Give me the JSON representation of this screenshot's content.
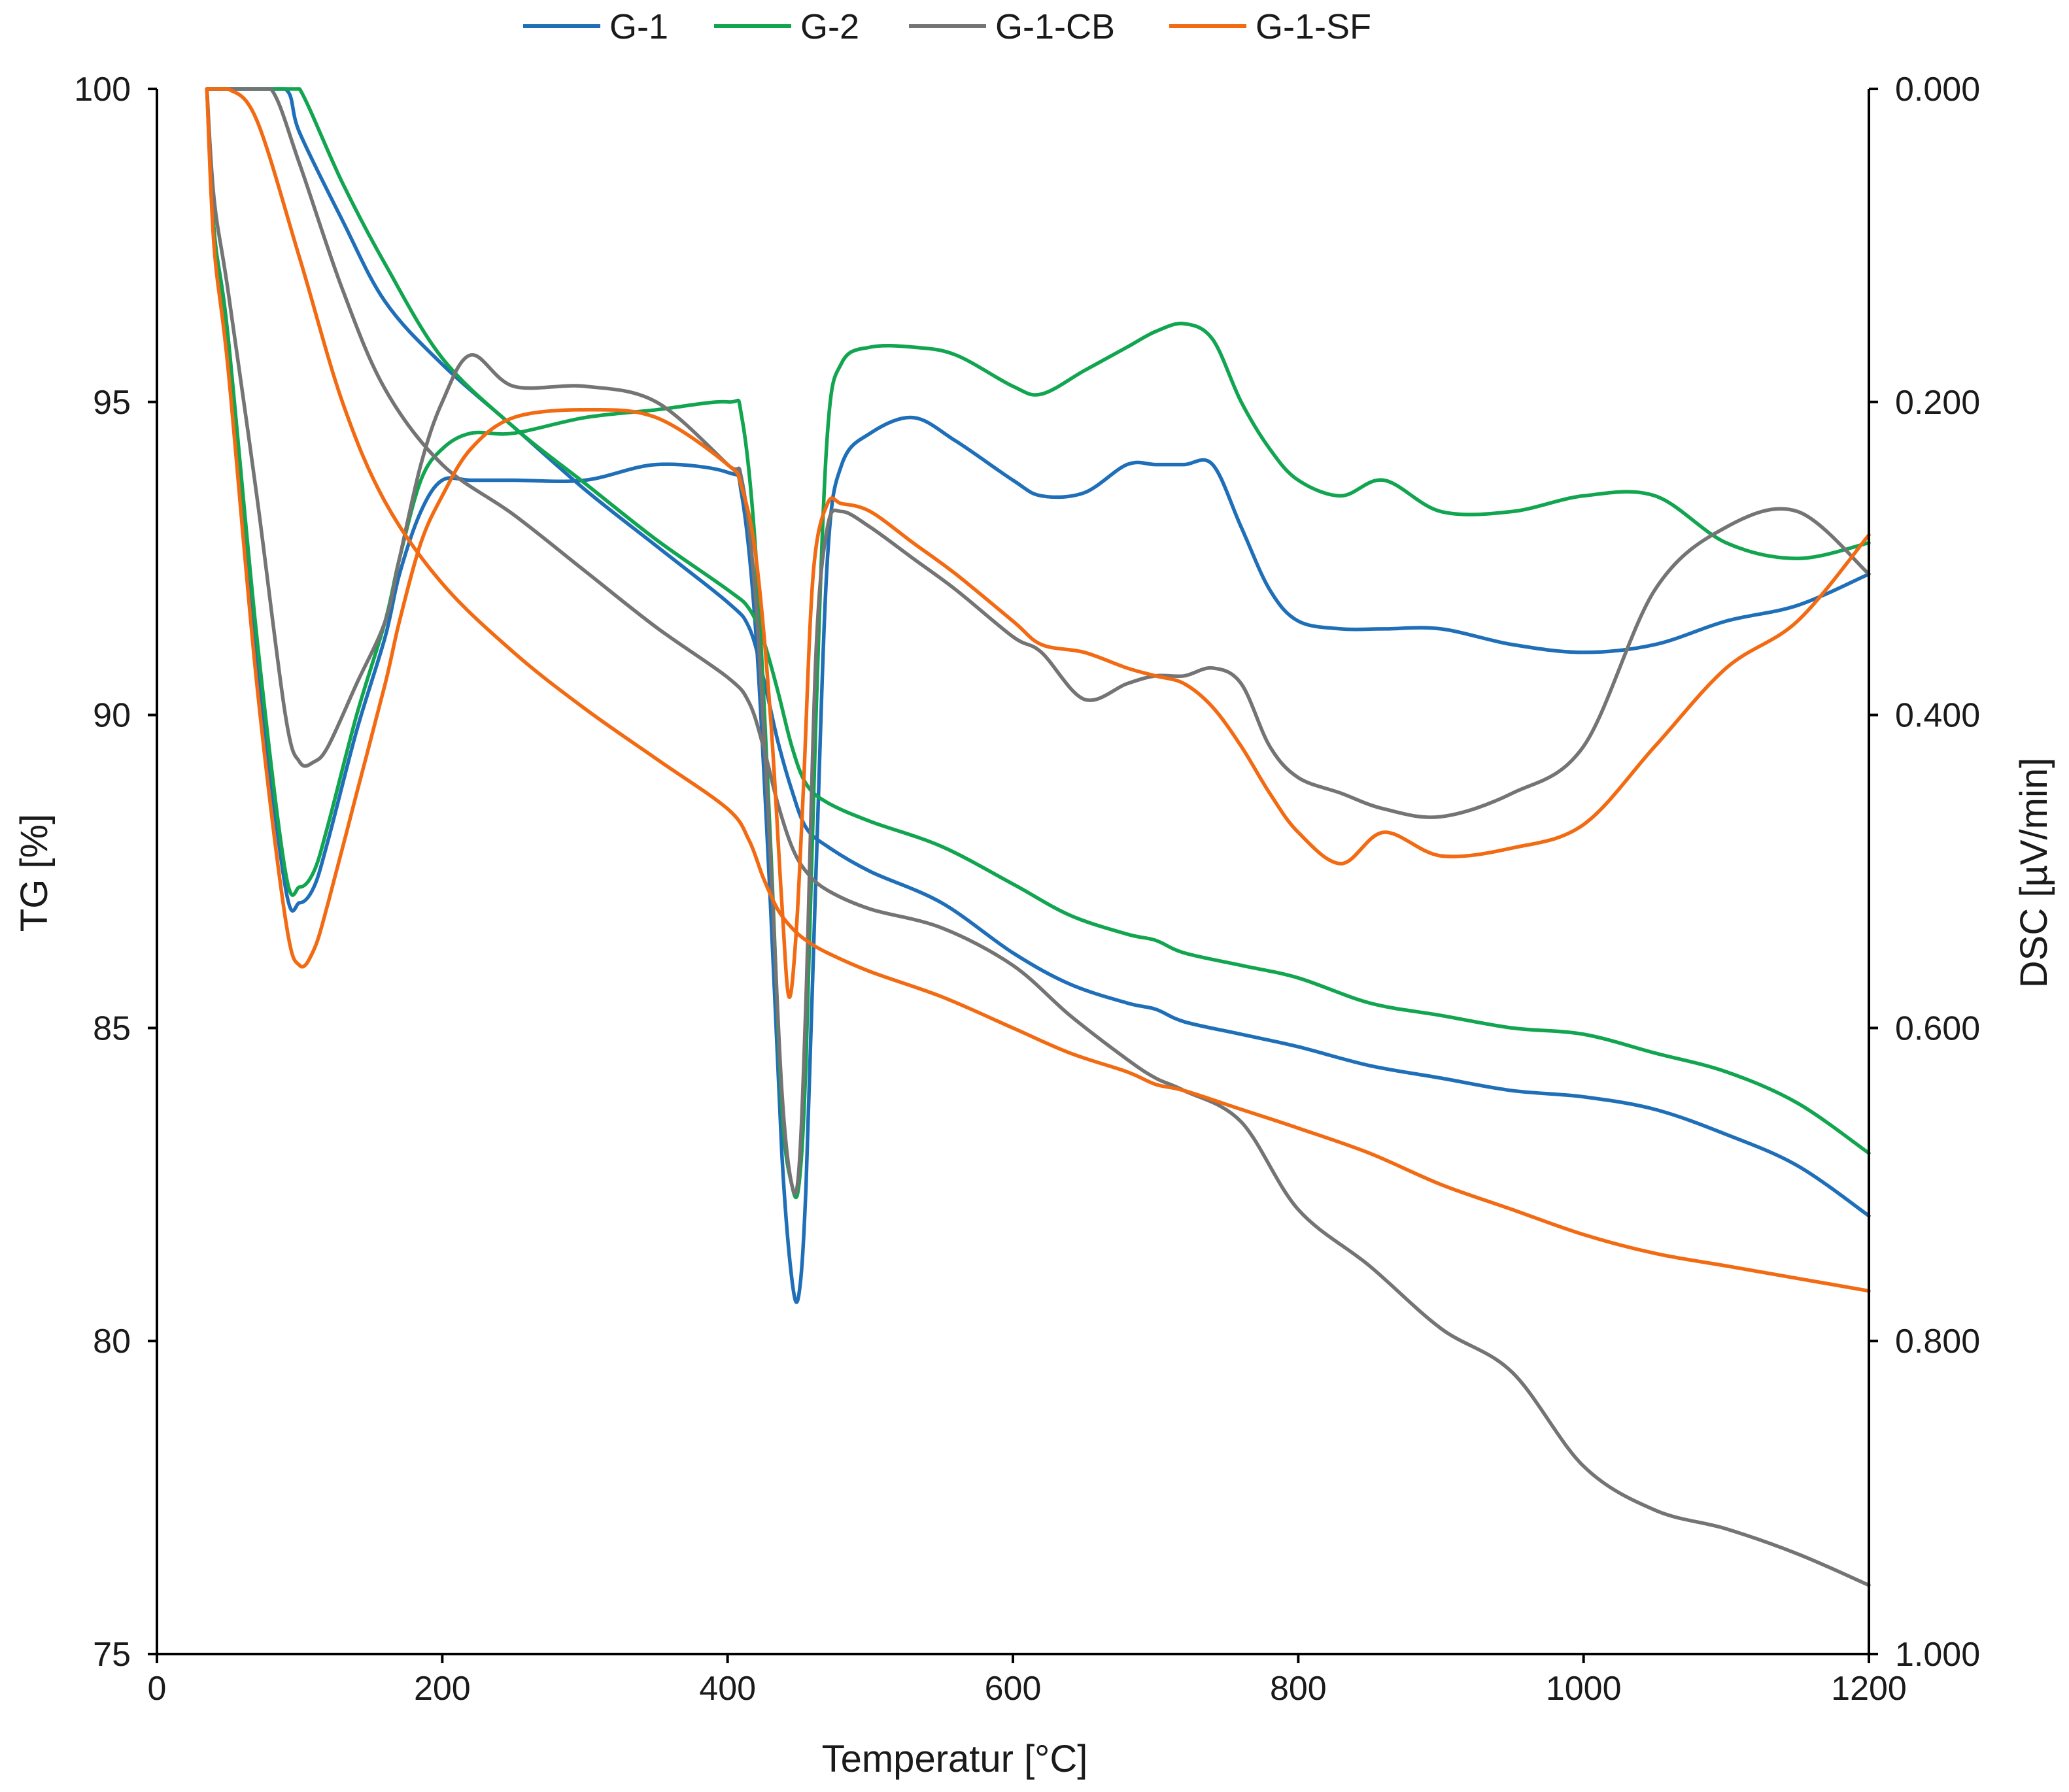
{
  "chart_data": {
    "type": "line",
    "title": "",
    "xlabel": "Temperatur [°C]",
    "ylabel": "TG [%]",
    "y2label": "DSC [µV/min]",
    "xlim": [
      0,
      1200
    ],
    "ylim": [
      75,
      100
    ],
    "y2lim": [
      0.0,
      1.0
    ],
    "y2_inverted": true,
    "grid": false,
    "legend_position": "top-center",
    "x_ticks": [
      "0",
      "200",
      "400",
      "600",
      "800",
      "1000",
      "1200"
    ],
    "y_ticks": [
      "75",
      "80",
      "85",
      "90",
      "95",
      "100"
    ],
    "y2_ticks": [
      "0.000",
      "0.200",
      "0.400",
      "0.600",
      "0.800",
      "1.000"
    ],
    "series": [
      {
        "name": "G-1",
        "color": "#1f6fb8",
        "tg": {
          "x": [
            35,
            60,
            90,
            100,
            130,
            160,
            200,
            250,
            300,
            350,
            400,
            415,
            425,
            435,
            445,
            455,
            470,
            500,
            550,
            600,
            640,
            680,
            700,
            720,
            760,
            800,
            850,
            900,
            950,
            1000,
            1050,
            1100,
            1150,
            1200
          ],
          "y": [
            100,
            100,
            100,
            99.3,
            97.9,
            96.6,
            95.6,
            94.6,
            93.6,
            92.7,
            91.8,
            91.4,
            90.6,
            89.6,
            88.8,
            88.2,
            87.9,
            87.5,
            87.0,
            86.2,
            85.7,
            85.4,
            85.3,
            85.1,
            84.9,
            84.7,
            84.4,
            84.2,
            84.0,
            83.9,
            83.7,
            83.3,
            82.8,
            82.0
          ]
        },
        "dsc": {
          "x": [
            35,
            40,
            50,
            70,
            90,
            100,
            110,
            120,
            140,
            160,
            170,
            185,
            200,
            220,
            250,
            300,
            350,
            400,
            410,
            420,
            430,
            438,
            445,
            450,
            455,
            462,
            470,
            480,
            500,
            530,
            560,
            600,
            620,
            650,
            680,
            700,
            720,
            740,
            760,
            780,
            800,
            830,
            860,
            900,
            950,
            1000,
            1050,
            1100,
            1150,
            1200
          ],
          "y": [
            0.0,
            0.09,
            0.16,
            0.36,
            0.51,
            0.52,
            0.51,
            0.48,
            0.41,
            0.35,
            0.31,
            0.27,
            0.25,
            0.25,
            0.25,
            0.25,
            0.24,
            0.245,
            0.26,
            0.35,
            0.52,
            0.68,
            0.76,
            0.77,
            0.7,
            0.5,
            0.3,
            0.24,
            0.22,
            0.21,
            0.225,
            0.25,
            0.26,
            0.258,
            0.24,
            0.24,
            0.24,
            0.24,
            0.28,
            0.32,
            0.34,
            0.345,
            0.345,
            0.345,
            0.355,
            0.36,
            0.355,
            0.34,
            0.33,
            0.31
          ]
        }
      },
      {
        "name": "G-2",
        "color": "#12a550",
        "tg": {
          "x": [
            35,
            60,
            90,
            100,
            130,
            160,
            200,
            250,
            300,
            350,
            400,
            415,
            425,
            435,
            445,
            455,
            470,
            500,
            550,
            600,
            640,
            680,
            700,
            720,
            760,
            800,
            850,
            900,
            950,
            1000,
            1050,
            1100,
            1150,
            1200
          ],
          "y": [
            100,
            100,
            100,
            100,
            98.5,
            97.2,
            95.7,
            94.6,
            93.7,
            92.8,
            92.0,
            91.7,
            91.2,
            90.4,
            89.5,
            88.9,
            88.6,
            88.3,
            87.9,
            87.3,
            86.8,
            86.5,
            86.4,
            86.2,
            86.0,
            85.8,
            85.4,
            85.2,
            85.0,
            84.9,
            84.6,
            84.3,
            83.8,
            83.0
          ]
        },
        "dsc": {
          "x": [
            35,
            40,
            50,
            70,
            90,
            100,
            110,
            120,
            140,
            160,
            170,
            185,
            200,
            220,
            250,
            300,
            350,
            400,
            410,
            420,
            430,
            438,
            445,
            450,
            455,
            462,
            470,
            480,
            500,
            530,
            560,
            600,
            620,
            650,
            680,
            700,
            720,
            740,
            760,
            780,
            800,
            830,
            860,
            900,
            950,
            1000,
            1050,
            1100,
            1150,
            1200
          ],
          "y": [
            0.0,
            0.09,
            0.16,
            0.35,
            0.5,
            0.51,
            0.5,
            0.47,
            0.4,
            0.34,
            0.3,
            0.25,
            0.23,
            0.22,
            0.22,
            0.21,
            0.205,
            0.2,
            0.21,
            0.3,
            0.48,
            0.65,
            0.7,
            0.7,
            0.62,
            0.4,
            0.22,
            0.175,
            0.165,
            0.165,
            0.17,
            0.19,
            0.195,
            0.18,
            0.165,
            0.155,
            0.15,
            0.16,
            0.2,
            0.23,
            0.25,
            0.26,
            0.25,
            0.27,
            0.27,
            0.26,
            0.26,
            0.29,
            0.3,
            0.29
          ]
        }
      },
      {
        "name": "G-1-CB",
        "color": "#747474",
        "tg": {
          "x": [
            35,
            60,
            80,
            100,
            130,
            160,
            200,
            250,
            300,
            350,
            400,
            415,
            425,
            435,
            445,
            455,
            470,
            500,
            550,
            600,
            640,
            680,
            700,
            720,
            760,
            800,
            850,
            900,
            950,
            1000,
            1050,
            1100,
            1150,
            1200
          ],
          "y": [
            100,
            100,
            100,
            98.8,
            96.8,
            95.2,
            94.0,
            93.2,
            92.3,
            91.4,
            90.6,
            90.2,
            89.5,
            88.6,
            87.9,
            87.5,
            87.2,
            86.9,
            86.6,
            86.0,
            85.2,
            84.5,
            84.2,
            84.0,
            83.5,
            82.1,
            81.2,
            80.2,
            79.5,
            78.0,
            77.3,
            77.0,
            76.6,
            76.1
          ]
        },
        "dsc": {
          "x": [
            35,
            40,
            50,
            70,
            90,
            100,
            110,
            120,
            140,
            160,
            170,
            185,
            200,
            220,
            250,
            300,
            350,
            400,
            410,
            420,
            430,
            438,
            445,
            450,
            455,
            462,
            470,
            480,
            500,
            530,
            560,
            600,
            620,
            650,
            680,
            700,
            720,
            740,
            760,
            780,
            800,
            830,
            860,
            900,
            950,
            1000,
            1050,
            1100,
            1150,
            1200
          ],
          "y": [
            0.0,
            0.07,
            0.13,
            0.26,
            0.4,
            0.43,
            0.43,
            0.42,
            0.38,
            0.34,
            0.3,
            0.24,
            0.2,
            0.17,
            0.19,
            0.19,
            0.2,
            0.24,
            0.25,
            0.33,
            0.49,
            0.64,
            0.7,
            0.69,
            0.58,
            0.36,
            0.28,
            0.27,
            0.28,
            0.3,
            0.32,
            0.35,
            0.36,
            0.39,
            0.38,
            0.375,
            0.375,
            0.37,
            0.38,
            0.42,
            0.44,
            0.45,
            0.46,
            0.465,
            0.45,
            0.42,
            0.32,
            0.28,
            0.27,
            0.31
          ]
        }
      },
      {
        "name": "G-1-SF",
        "color": "#f26a12",
        "tg": {
          "x": [
            35,
            50,
            70,
            100,
            130,
            160,
            200,
            250,
            300,
            350,
            400,
            415,
            425,
            435,
            445,
            455,
            470,
            500,
            550,
            600,
            640,
            680,
            700,
            720,
            760,
            800,
            850,
            900,
            950,
            1000,
            1050,
            1100,
            1150,
            1200
          ],
          "y": [
            100,
            100,
            99.5,
            97.3,
            95.0,
            93.4,
            92.1,
            91.0,
            90.1,
            89.3,
            88.5,
            88.0,
            87.4,
            86.9,
            86.6,
            86.4,
            86.2,
            85.9,
            85.5,
            85.0,
            84.6,
            84.3,
            84.1,
            84.0,
            83.7,
            83.4,
            83.0,
            82.5,
            82.1,
            81.7,
            81.4,
            81.2,
            81.0,
            80.8
          ]
        },
        "dsc": {
          "x": [
            35,
            40,
            50,
            70,
            90,
            100,
            110,
            120,
            140,
            160,
            170,
            185,
            200,
            220,
            250,
            300,
            350,
            400,
            410,
            420,
            430,
            438,
            443,
            448,
            453,
            460,
            470,
            480,
            500,
            530,
            560,
            600,
            620,
            650,
            680,
            700,
            720,
            740,
            760,
            780,
            800,
            830,
            860,
            900,
            950,
            1000,
            1050,
            1100,
            1150,
            1200
          ],
          "y": [
            0.0,
            0.1,
            0.18,
            0.38,
            0.53,
            0.56,
            0.55,
            0.52,
            0.45,
            0.38,
            0.34,
            0.29,
            0.26,
            0.23,
            0.21,
            0.205,
            0.21,
            0.24,
            0.255,
            0.3,
            0.4,
            0.52,
            0.58,
            0.54,
            0.45,
            0.31,
            0.265,
            0.265,
            0.27,
            0.29,
            0.31,
            0.34,
            0.355,
            0.36,
            0.37,
            0.375,
            0.38,
            0.395,
            0.42,
            0.45,
            0.475,
            0.495,
            0.475,
            0.49,
            0.485,
            0.47,
            0.42,
            0.37,
            0.34,
            0.285
          ]
        }
      }
    ]
  }
}
